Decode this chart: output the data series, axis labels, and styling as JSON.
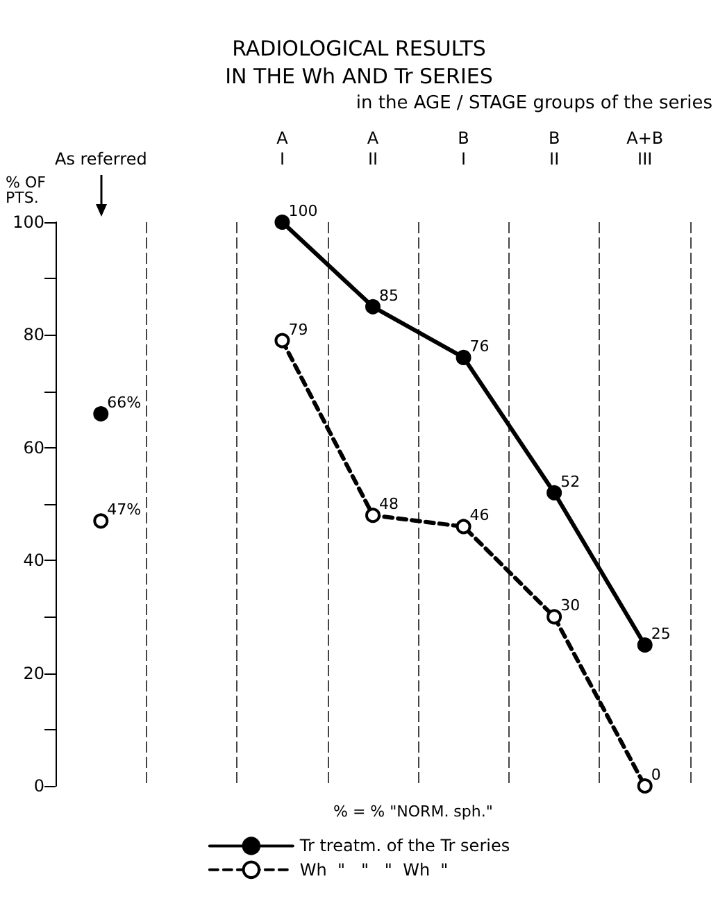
{
  "chart_data": {
    "type": "line",
    "title": "RADIOLOGICAL RESULTS\nIN THE Wh AND Tr SERIES",
    "ylabel": "% OF\nPTS.",
    "categories": [
      "As referred",
      null,
      "A\nI",
      "A\nII",
      "B\nI",
      "B\nII",
      "A+B\nIII"
    ],
    "series": [
      {
        "name": "Tr treatm. of the Tr series",
        "color": "#000000",
        "line_style": "solid",
        "marker": "circle",
        "values": [
          66,
          null,
          100,
          85,
          76,
          52,
          25
        ],
        "value_labels": [
          "66%",
          null,
          "100",
          "85",
          "76",
          "52",
          "25"
        ]
      },
      {
        "name": "Wh  \"   \"   \"  Wh  \"",
        "color": "#000000",
        "line_style": "dashed",
        "marker": "circle",
        "values": [
          47,
          null,
          79,
          48,
          46,
          30,
          0
        ],
        "value_labels": [
          "47%",
          null,
          "79",
          "48",
          "46",
          "30",
          "0"
        ]
      }
    ],
    "ylim": [
      0,
      100
    ],
    "yticks": [
      0,
      {
        "value": 10,
        "label": null
      },
      20,
      {
        "value": 30,
        "label": null
      },
      40,
      {
        "value": 50,
        "label": null
      },
      60,
      {
        "value": 70,
        "label": null
      },
      80,
      {
        "value": 90,
        "label": null
      },
      100
    ],
    "grid": "x",
    "legend": "bottom",
    "annotations": [
      "in the AGE / STAGE groups of the series",
      "% = % \"NORM. sph.\""
    ]
  }
}
